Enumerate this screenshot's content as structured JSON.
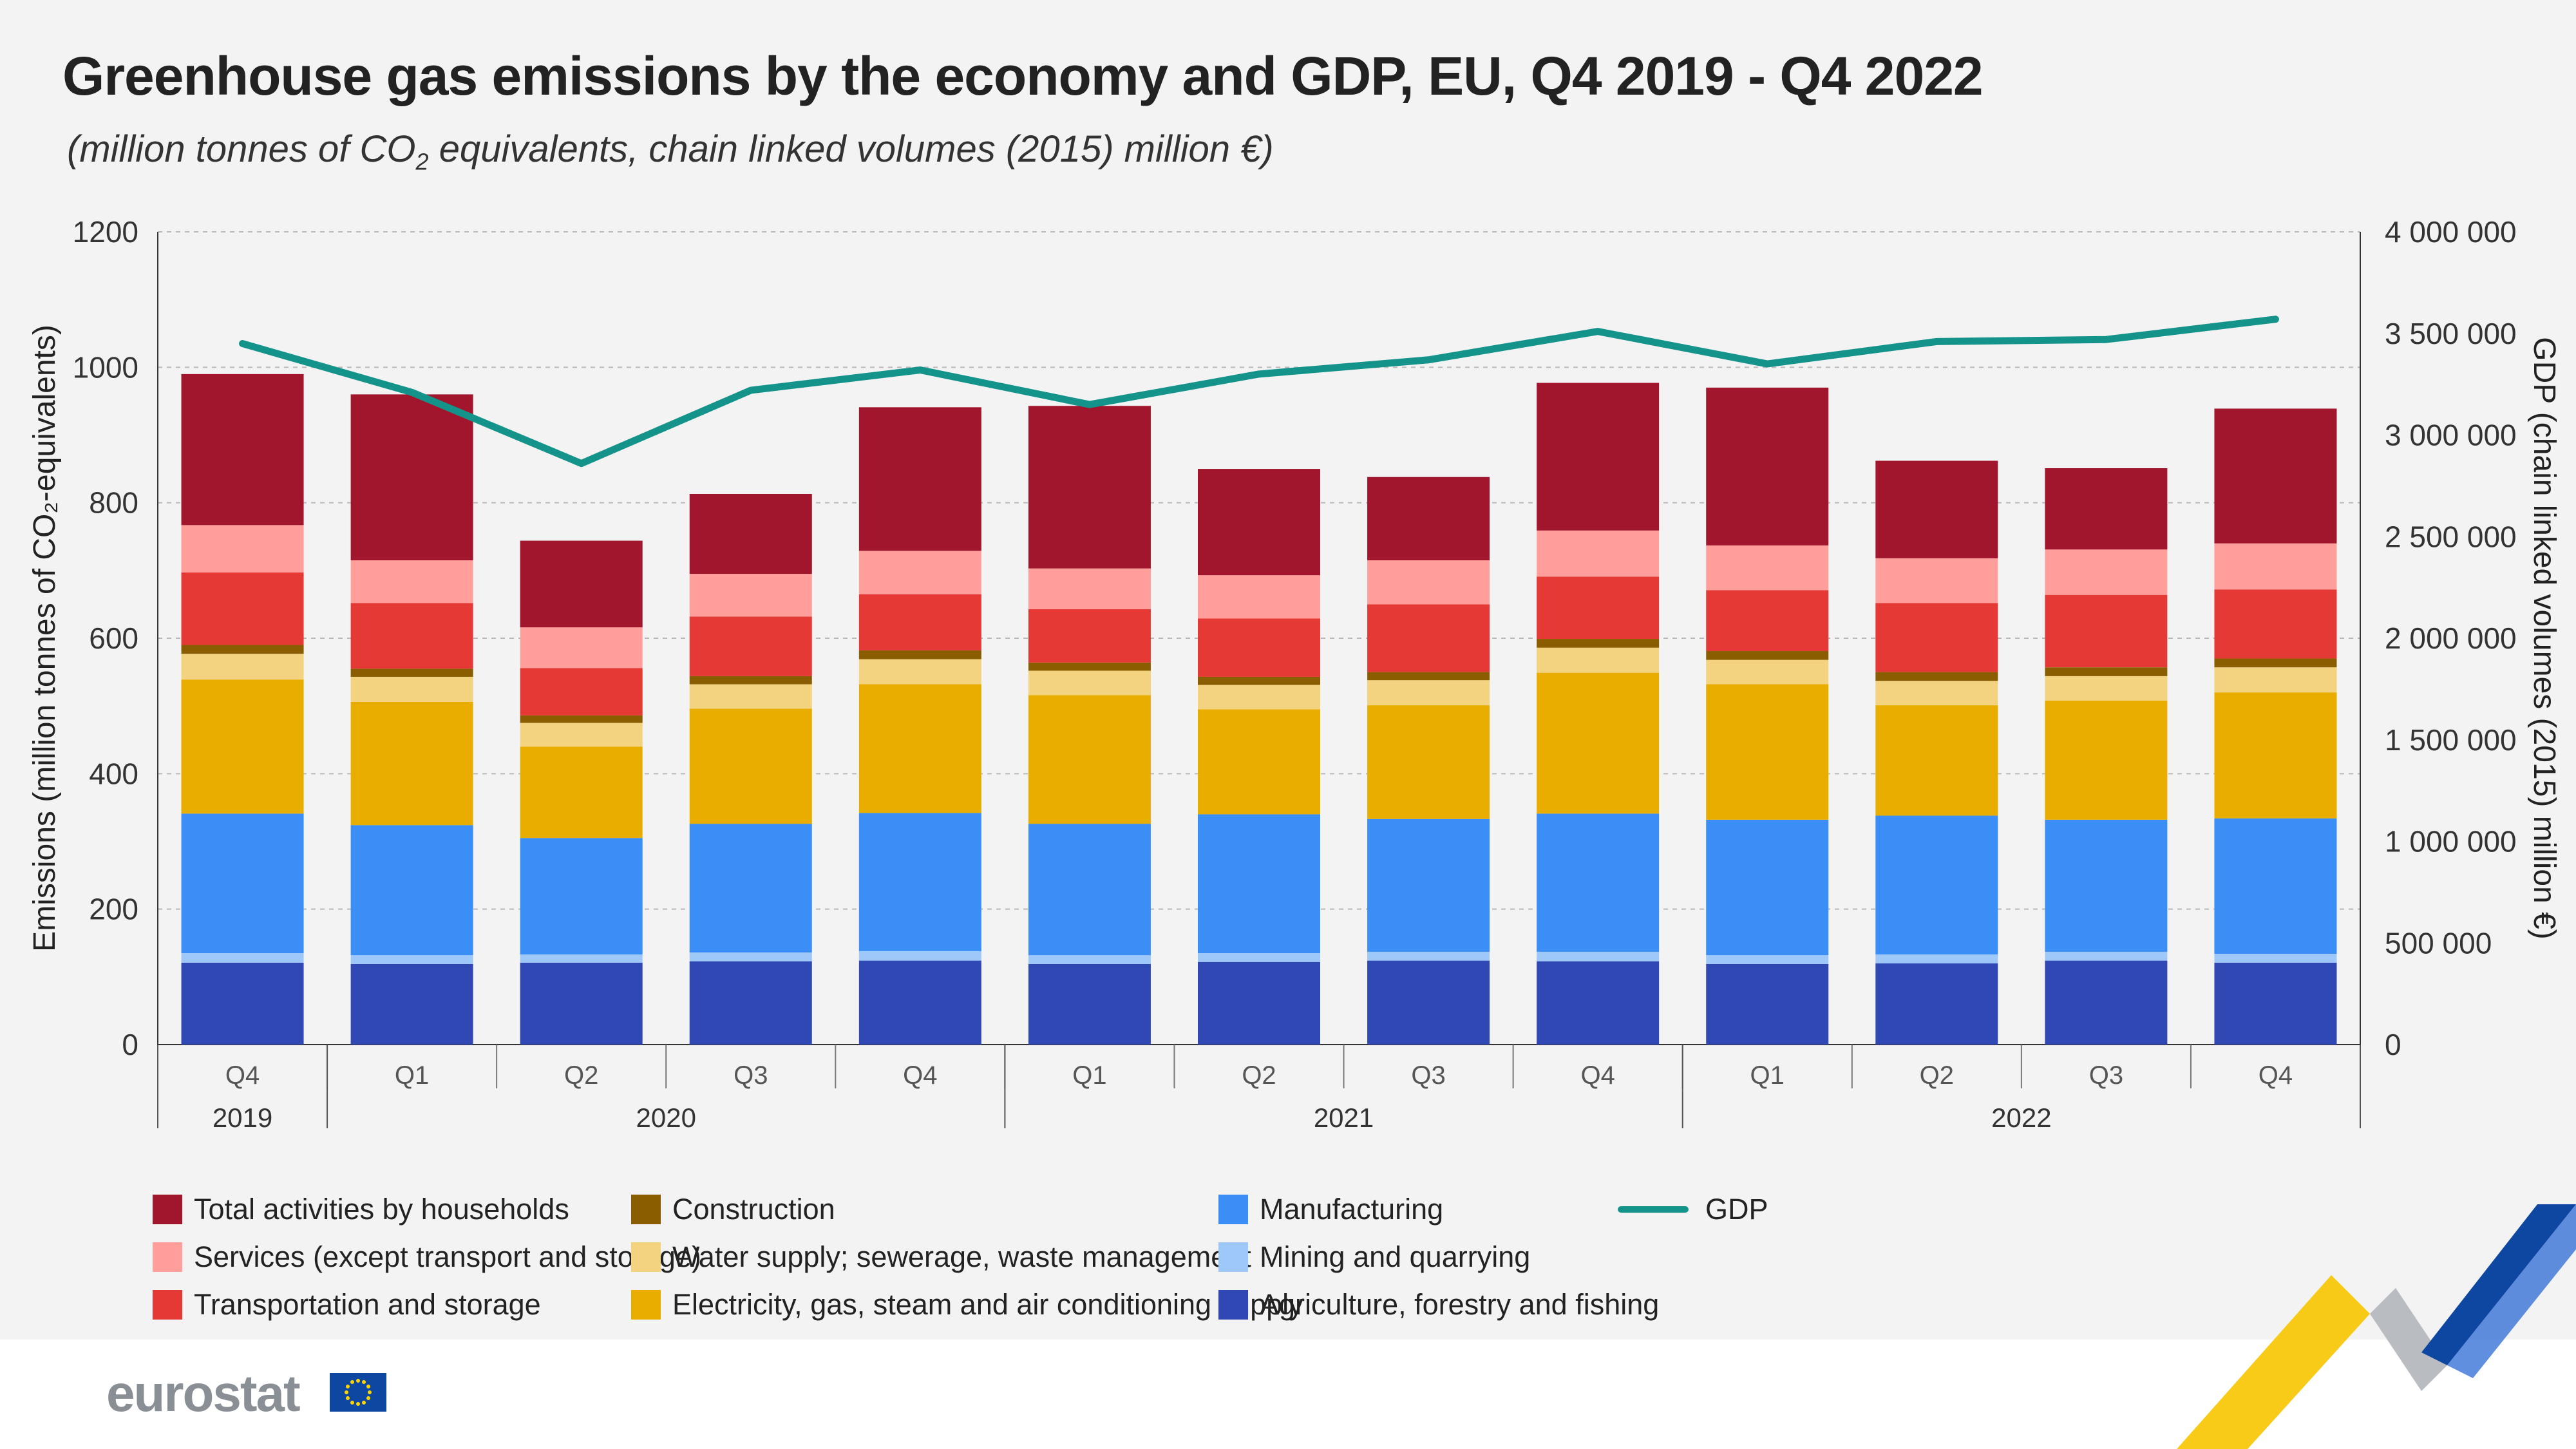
{
  "chart_data": {
    "type": "bar",
    "title": "Greenhouse gas emissions by the economy and GDP, EU, Q4 2019 - Q4 2022",
    "subtitle_parts": [
      "(million tonnes of CO",
      "2",
      " equivalents, chain linked volumes (2015) million €)"
    ],
    "ylabel": "Emissions (million tonnes of CO₂-equivalents)",
    "y2label": "GDP (chain linked volumes (2015) million €)",
    "ylim": [
      0,
      1200
    ],
    "y2lim": [
      0,
      4000000
    ],
    "yticks": [
      "0",
      "200",
      "400",
      "600",
      "800",
      "1000",
      "1200"
    ],
    "y2ticks": [
      "0",
      "500 000",
      "1 000 000",
      "1 500 000",
      "2 000 000",
      "2 500 000",
      "3 000 000",
      "3 500 000",
      "4 000 000"
    ],
    "categories": [
      "Q4",
      "Q1",
      "Q2",
      "Q3",
      "Q4",
      "Q1",
      "Q2",
      "Q3",
      "Q4",
      "Q1",
      "Q2",
      "Q3",
      "Q4"
    ],
    "year_groups": [
      {
        "label": "2019",
        "start": 0,
        "end": 0
      },
      {
        "label": "2020",
        "start": 1,
        "end": 4
      },
      {
        "label": "2021",
        "start": 5,
        "end": 8
      },
      {
        "label": "2022",
        "start": 9,
        "end": 12
      }
    ],
    "stack_order": [
      8,
      0,
      1,
      2,
      3,
      4,
      5,
      6,
      7
    ],
    "series": [
      {
        "name": "Mining and quarrying",
        "color": "#9ec8f8",
        "values": [
          14,
          13,
          12,
          13,
          14,
          13,
          13,
          13,
          14,
          13,
          13,
          13,
          13
        ]
      },
      {
        "name": "Manufacturing",
        "color": "#3a8ef5",
        "values": [
          206,
          192,
          172,
          190,
          204,
          194,
          205,
          196,
          204,
          200,
          205,
          195,
          200
        ]
      },
      {
        "name": "Electricity, gas, steam and air conditioning supply",
        "color": "#e9ad00",
        "values": [
          198,
          182,
          135,
          170,
          190,
          190,
          155,
          168,
          208,
          200,
          163,
          176,
          186
        ]
      },
      {
        "name": "Water supply; sewerage, waste management",
        "color": "#f3d37f",
        "values": [
          38,
          37,
          35,
          36,
          37,
          36,
          36,
          37,
          37,
          36,
          36,
          36,
          37
        ]
      },
      {
        "name": "Construction",
        "color": "#8a5e00",
        "values": [
          13,
          12,
          11,
          12,
          13,
          12,
          12,
          12,
          13,
          13,
          13,
          13,
          13
        ]
      },
      {
        "name": "Transportation and storage",
        "color": "#e53935",
        "values": [
          107,
          97,
          70,
          88,
          83,
          79,
          86,
          100,
          92,
          90,
          102,
          107,
          102
        ]
      },
      {
        "name": "Services (except transport and storage)",
        "color": "#ff9e9b",
        "values": [
          70,
          63,
          60,
          63,
          64,
          60,
          64,
          65,
          68,
          66,
          66,
          67,
          68
        ]
      },
      {
        "name": "Total activities by households",
        "color": "#a1152d",
        "values": [
          223,
          245,
          128,
          118,
          212,
          240,
          157,
          123,
          218,
          233,
          144,
          120,
          199
        ]
      },
      {
        "name": "Agriculture, forestry and fishing",
        "color": "#2f48b3",
        "values": [
          121,
          119,
          121,
          123,
          124,
          119,
          122,
          124,
          123,
          119,
          120,
          124,
          121
        ]
      }
    ],
    "line_series": {
      "name": "GDP",
      "color": "#14938a",
      "values": [
        3450000,
        3210000,
        2860000,
        3220000,
        3320000,
        3150000,
        3300000,
        3370000,
        3510000,
        3350000,
        3460000,
        3470000,
        3570000
      ]
    }
  },
  "footer": {
    "logo_text": "eurostat"
  }
}
